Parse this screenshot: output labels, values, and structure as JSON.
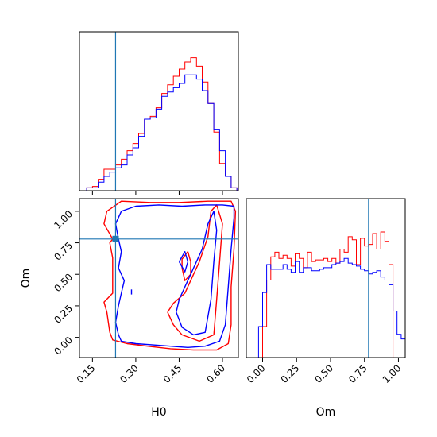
{
  "chart_data": {
    "type": "corner",
    "parameters": [
      "H0",
      "Om"
    ],
    "truth": {
      "H0": 0.23,
      "Om": 0.78
    },
    "colors": {
      "red": "#ff0000",
      "blue": "#0000ff",
      "truth": "#1f77b4",
      "axis": "#000000"
    },
    "panels": {
      "h0_hist": {
        "xlim": [
          0.105,
          0.655
        ],
        "bin_edges": [
          0.13,
          0.15,
          0.17,
          0.19,
          0.21,
          0.23,
          0.25,
          0.27,
          0.29,
          0.31,
          0.33,
          0.35,
          0.37,
          0.39,
          0.41,
          0.43,
          0.45,
          0.47,
          0.49,
          0.51,
          0.53,
          0.55,
          0.57,
          0.59,
          0.61,
          0.63,
          0.65
        ],
        "series": [
          {
            "color": "red",
            "counts": [
              0.02,
              0.03,
              0.08,
              0.15,
              0.15,
              0.18,
              0.22,
              0.28,
              0.33,
              0.4,
              0.5,
              0.52,
              0.58,
              0.68,
              0.74,
              0.8,
              0.85,
              0.9,
              0.93,
              0.87,
              0.76,
              0.61,
              0.41,
              0.19,
              0.1,
              0.02
            ]
          },
          {
            "color": "blue",
            "counts": [
              0.02,
              0.02,
              0.06,
              0.1,
              0.13,
              0.16,
              0.18,
              0.25,
              0.3,
              0.38,
              0.5,
              0.51,
              0.57,
              0.66,
              0.69,
              0.72,
              0.75,
              0.81,
              0.81,
              0.78,
              0.7,
              0.61,
              0.43,
              0.28,
              0.1,
              0.02
            ]
          }
        ]
      },
      "om_hist": {
        "xlim": [
          -0.12,
          1.05
        ],
        "xticks": [
          "0.00",
          "0.25",
          "0.50",
          "0.75",
          "1.00"
        ],
        "bin_edges": [
          -0.06,
          -0.03,
          0.0,
          0.03,
          0.06,
          0.09,
          0.12,
          0.15,
          0.18,
          0.21,
          0.24,
          0.27,
          0.3,
          0.33,
          0.36,
          0.39,
          0.42,
          0.45,
          0.48,
          0.51,
          0.54,
          0.57,
          0.6,
          0.63,
          0.66,
          0.69,
          0.72,
          0.75,
          0.78,
          0.81,
          0.84,
          0.87,
          0.9,
          0.93,
          0.96,
          0.99,
          1.02,
          1.05
        ],
        "series": [
          {
            "color": "red",
            "counts": [
              0,
              0,
              0.2,
              0.5,
              0.65,
              0.68,
              0.64,
              0.66,
              0.64,
              0.59,
              0.67,
              0.64,
              0.58,
              0.68,
              0.62,
              0.63,
              0.63,
              0.64,
              0.62,
              0.64,
              0.61,
              0.7,
              0.68,
              0.78,
              0.76,
              0.6,
              0.77,
              0.72,
              0.73,
              0.8,
              0.7,
              0.81,
              0.75,
              0.6,
              0,
              0,
              0
            ]
          },
          {
            "color": "blue",
            "counts": [
              0,
              0.2,
              0.42,
              0.6,
              0.57,
              0.57,
              0.57,
              0.6,
              0.57,
              0.55,
              0.62,
              0.55,
              0.58,
              0.58,
              0.56,
              0.56,
              0.57,
              0.58,
              0.58,
              0.6,
              0.61,
              0.62,
              0.64,
              0.61,
              0.6,
              0.59,
              0.57,
              0.56,
              0.54,
              0.55,
              0.56,
              0.52,
              0.5,
              0.47,
              0.3,
              0.15,
              0.12
            ]
          }
        ]
      },
      "joint": {
        "xlabel": "H0",
        "ylabel": "Om",
        "xlim": [
          0.105,
          0.655
        ],
        "ylim": [
          -0.16,
          1.1
        ],
        "xticks": [
          "0.15",
          "0.30",
          "0.45",
          "0.60"
        ],
        "yticks": [
          "0.00",
          "0.25",
          "0.50",
          "0.75",
          "1.00"
        ],
        "contours": [
          {
            "color": "red",
            "points": [
              [
                0.21,
                0.04
              ],
              [
                0.22,
                -0.02
              ],
              [
                0.27,
                -0.05
              ],
              [
                0.34,
                -0.07
              ],
              [
                0.42,
                -0.09
              ],
              [
                0.5,
                -0.1
              ],
              [
                0.58,
                -0.1
              ],
              [
                0.62,
                -0.05
              ],
              [
                0.63,
                0.1
              ],
              [
                0.63,
                0.4
              ],
              [
                0.64,
                0.7
              ],
              [
                0.645,
                1.0
              ],
              [
                0.63,
                1.08
              ],
              [
                0.55,
                1.08
              ],
              [
                0.45,
                1.07
              ],
              [
                0.35,
                1.07
              ],
              [
                0.25,
                1.08
              ],
              [
                0.2,
                1.0
              ],
              [
                0.19,
                0.9
              ],
              [
                0.22,
                0.78
              ],
              [
                0.21,
                0.75
              ],
              [
                0.22,
                0.63
              ],
              [
                0.22,
                0.5
              ],
              [
                0.22,
                0.35
              ],
              [
                0.19,
                0.28
              ],
              [
                0.2,
                0.2
              ],
              [
                0.21,
                0.04
              ]
            ]
          },
          {
            "color": "red",
            "points": [
              [
                0.41,
                0.2
              ],
              [
                0.43,
                0.1
              ],
              [
                0.46,
                0.02
              ],
              [
                0.52,
                -0.03
              ],
              [
                0.57,
                0.02
              ],
              [
                0.58,
                0.3
              ],
              [
                0.59,
                0.6
              ],
              [
                0.6,
                0.9
              ],
              [
                0.58,
                1.05
              ],
              [
                0.56,
                1.0
              ],
              [
                0.55,
                0.8
              ],
              [
                0.52,
                0.6
              ],
              [
                0.5,
                0.5
              ],
              [
                0.47,
                0.35
              ],
              [
                0.43,
                0.27
              ],
              [
                0.41,
                0.2
              ]
            ]
          },
          {
            "color": "red",
            "points": [
              [
                0.46,
                0.55
              ],
              [
                0.47,
                0.45
              ],
              [
                0.49,
                0.5
              ],
              [
                0.49,
                0.6
              ],
              [
                0.48,
                0.68
              ],
              [
                0.46,
                0.62
              ],
              [
                0.46,
                0.55
              ]
            ]
          },
          {
            "color": "blue",
            "points": [
              [
                0.24,
                0.02
              ],
              [
                0.25,
                -0.03
              ],
              [
                0.3,
                -0.05
              ],
              [
                0.36,
                -0.06
              ],
              [
                0.42,
                -0.07
              ],
              [
                0.48,
                -0.08
              ],
              [
                0.54,
                -0.07
              ],
              [
                0.59,
                -0.03
              ],
              [
                0.61,
                0.1
              ],
              [
                0.62,
                0.4
              ],
              [
                0.63,
                0.7
              ],
              [
                0.64,
                0.95
              ],
              [
                0.64,
                1.04
              ],
              [
                0.6,
                1.05
              ],
              [
                0.54,
                1.05
              ],
              [
                0.46,
                1.04
              ],
              [
                0.38,
                1.05
              ],
              [
                0.3,
                1.04
              ],
              [
                0.25,
                1.0
              ],
              [
                0.23,
                0.9
              ],
              [
                0.24,
                0.78
              ],
              [
                0.25,
                0.68
              ],
              [
                0.24,
                0.55
              ],
              [
                0.26,
                0.45
              ],
              [
                0.25,
                0.35
              ],
              [
                0.24,
                0.25
              ],
              [
                0.23,
                0.12
              ],
              [
                0.24,
                0.02
              ]
            ]
          },
          {
            "color": "blue",
            "points": [
              [
                0.44,
                0.2
              ],
              [
                0.46,
                0.08
              ],
              [
                0.5,
                0.02
              ],
              [
                0.54,
                0.04
              ],
              [
                0.56,
                0.3
              ],
              [
                0.57,
                0.6
              ],
              [
                0.58,
                0.85
              ],
              [
                0.57,
                1.0
              ],
              [
                0.55,
                0.9
              ],
              [
                0.53,
                0.7
              ],
              [
                0.5,
                0.55
              ],
              [
                0.47,
                0.4
              ],
              [
                0.45,
                0.3
              ],
              [
                0.44,
                0.2
              ]
            ]
          },
          {
            "color": "blue",
            "points": [
              [
                0.45,
                0.6
              ],
              [
                0.47,
                0.52
              ],
              [
                0.48,
                0.6
              ],
              [
                0.47,
                0.68
              ],
              [
                0.45,
                0.6
              ]
            ]
          },
          {
            "color": "blue",
            "points": [
              [
                0.285,
                0.38
              ],
              [
                0.285,
                0.34
              ]
            ]
          }
        ]
      }
    }
  }
}
